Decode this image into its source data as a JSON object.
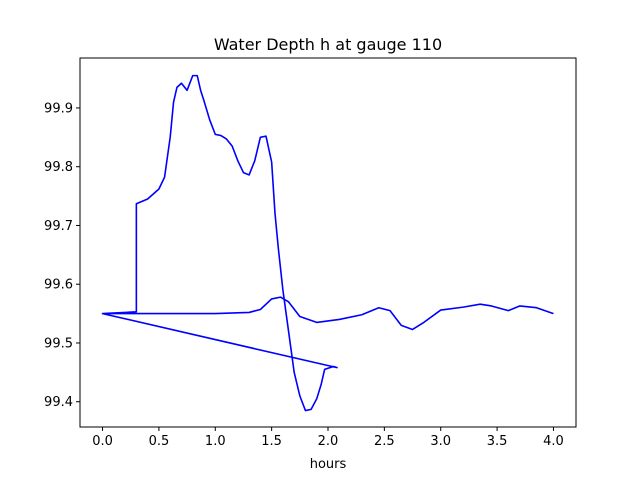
{
  "chart_data": {
    "type": "line",
    "title": "Water Depth h at gauge 110",
    "xlabel": "hours",
    "ylabel": "",
    "xlim": [
      -0.2,
      4.2
    ],
    "ylim": [
      99.357,
      99.985
    ],
    "xticks": [
      0.0,
      0.5,
      1.0,
      1.5,
      2.0,
      2.5,
      3.0,
      3.5,
      4.0
    ],
    "xtick_labels": [
      "0.0",
      "0.5",
      "1.0",
      "1.5",
      "2.0",
      "2.5",
      "3.0",
      "3.5",
      "4.0"
    ],
    "yticks": [
      99.4,
      99.5,
      99.6,
      99.7,
      99.8,
      99.9
    ],
    "ytick_labels": [
      "99.4",
      "99.5",
      "99.6",
      "99.7",
      "99.8",
      "99.9"
    ],
    "grid": false,
    "line_color": "#0000ff",
    "series": [
      {
        "x": [
          0.0,
          0.3,
          0.3,
          0.4,
          0.5,
          0.55,
          0.6,
          0.63,
          0.66,
          0.7,
          0.75,
          0.8,
          0.84,
          0.87,
          0.9,
          0.95,
          1.0,
          1.05,
          1.1,
          1.15,
          1.2,
          1.25,
          1.3,
          1.35,
          1.4,
          1.45,
          1.5,
          1.53,
          1.56,
          1.6,
          1.65,
          1.7,
          1.75,
          1.8,
          1.85,
          1.9,
          1.94,
          1.97,
          2.0,
          2.05,
          2.08,
          2.08,
          0.0,
          0.3,
          0.6,
          1.0,
          1.3,
          1.4,
          1.5,
          1.58,
          1.65,
          1.75,
          1.9,
          2.1,
          2.3,
          2.45,
          2.55,
          2.65,
          2.75,
          2.85,
          3.0,
          3.2,
          3.35,
          3.45,
          3.6,
          3.7,
          3.85,
          4.0
        ],
        "y": [
          99.55,
          99.553,
          99.737,
          99.745,
          99.762,
          99.782,
          99.85,
          99.91,
          99.935,
          99.942,
          99.93,
          99.955,
          99.955,
          99.93,
          99.912,
          99.88,
          99.855,
          99.853,
          99.847,
          99.835,
          99.81,
          99.79,
          99.786,
          99.81,
          99.85,
          99.852,
          99.808,
          99.72,
          99.66,
          99.59,
          99.52,
          99.45,
          99.41,
          99.385,
          99.387,
          99.405,
          99.43,
          99.455,
          99.457,
          99.46,
          99.458,
          99.458,
          99.55,
          99.55,
          99.55,
          99.55,
          99.552,
          99.557,
          99.575,
          99.578,
          99.57,
          99.545,
          99.535,
          99.54,
          99.548,
          99.56,
          99.555,
          99.53,
          99.523,
          99.535,
          99.556,
          99.561,
          99.566,
          99.563,
          99.555,
          99.563,
          99.56,
          99.55
        ]
      }
    ]
  }
}
